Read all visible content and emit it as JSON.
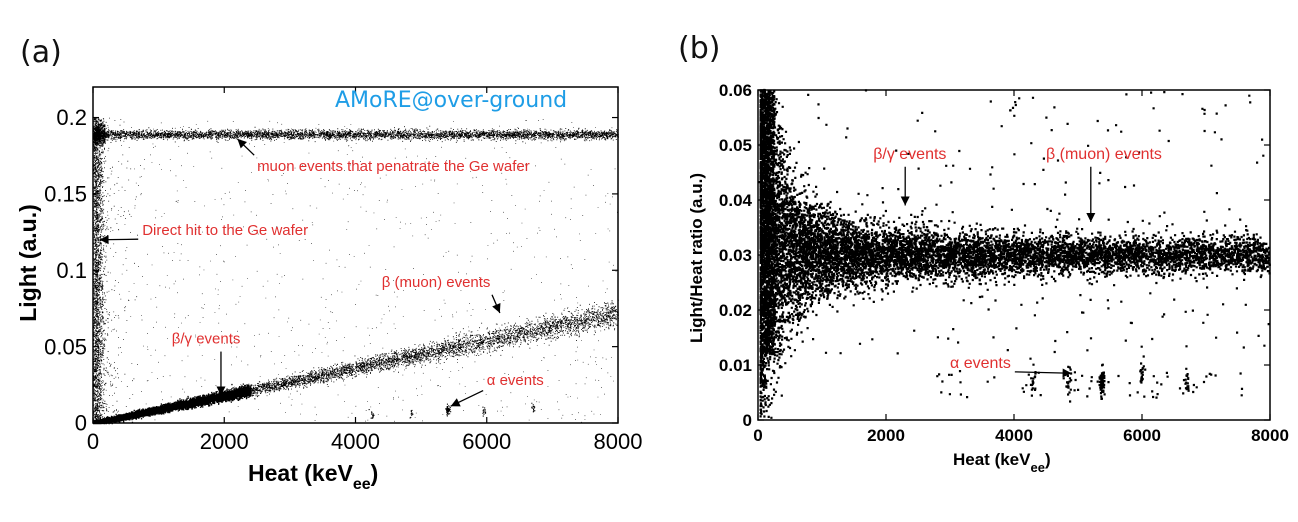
{
  "chart_data": [
    {
      "type": "scatter",
      "panel_label": "(a)",
      "title": "",
      "watermark": "AMoRE@over-ground",
      "xlabel": "Heat (keV",
      "xlabel_sub": "ee",
      "xlabel_close": ")",
      "ylabel": "Light (a.u.)",
      "xlim": [
        0,
        8000
      ],
      "ylim": [
        0,
        0.22
      ],
      "xticks": [
        0,
        2000,
        4000,
        6000,
        8000
      ],
      "xtick_labels": [
        "0",
        "2000",
        "4000",
        "6000",
        "8000"
      ],
      "yticks": [
        0,
        0.05,
        0.1,
        0.15,
        0.2
      ],
      "ytick_labels": [
        "0",
        "0.05",
        "0.1",
        "0.15",
        "0.2"
      ],
      "populations": [
        {
          "name": "muon events that penatrate the Ge wafer",
          "x_range": [
            0,
            8000
          ],
          "y_center": 0.189,
          "y_spread": 0.0015
        },
        {
          "name": "Direct hit to the Ge wafer",
          "x_range": [
            0,
            150
          ],
          "y_range": [
            0,
            0.19
          ]
        },
        {
          "name": "β/γ events",
          "x_range": [
            0,
            2300
          ],
          "slope_per_keV": 9e-06,
          "y_spread": 0.0012
        },
        {
          "name": "β (muon) events",
          "x_range": [
            2300,
            8000
          ],
          "slope_per_keV": 9e-06,
          "y_spread": 0.003
        },
        {
          "name": "α events",
          "clusters": [
            [
              4250,
              0.006
            ],
            [
              4850,
              0.006
            ],
            [
              5400,
              0.009
            ],
            [
              5950,
              0.008
            ],
            [
              6700,
              0.01
            ]
          ]
        }
      ],
      "annotations": [
        {
          "text": "muon events that penatrate the Ge wafer",
          "point_to": [
            2200,
            0.186
          ],
          "label_at": [
            2500,
            0.165
          ]
        },
        {
          "text": "Direct hit to the Ge wafer",
          "point_to": [
            100,
            0.12
          ],
          "label_at": [
            750,
            0.123
          ]
        },
        {
          "text": "β (muon) events",
          "point_to": [
            6200,
            0.072
          ],
          "label_at": [
            4400,
            0.089
          ]
        },
        {
          "text": "β/γ events",
          "point_to": [
            1950,
            0.018
          ],
          "label_at": [
            1200,
            0.052
          ]
        },
        {
          "text": "α events",
          "point_to": [
            5450,
            0.011
          ],
          "label_at": [
            6000,
            0.025
          ]
        }
      ]
    },
    {
      "type": "scatter",
      "panel_label": "(b)",
      "title": "",
      "xlabel": "Heat (keV",
      "xlabel_sub": "ee",
      "xlabel_close": ")",
      "ylabel": "Light/Heat ratio (a.u.)",
      "xlim": [
        0,
        8000
      ],
      "ylim": [
        0,
        0.06
      ],
      "xticks": [
        0,
        2000,
        4000,
        6000,
        8000
      ],
      "xtick_labels": [
        "0",
        "2000",
        "4000",
        "6000",
        "8000"
      ],
      "yticks": [
        0,
        0.01,
        0.02,
        0.03,
        0.04,
        0.05,
        0.06
      ],
      "ytick_labels": [
        "0",
        "0.01",
        "0.02",
        "0.03",
        "0.04",
        "0.05",
        "0.06"
      ],
      "populations": [
        {
          "name": "β/γ events",
          "x_range": [
            0,
            8000
          ],
          "ratio_center": 0.03
        },
        {
          "name": "α events",
          "clusters": [
            [
              4300,
              0.007
            ],
            [
              4850,
              0.007
            ],
            [
              5380,
              0.007
            ],
            [
              6000,
              0.008
            ],
            [
              6700,
              0.007
            ]
          ]
        }
      ],
      "annotations": [
        {
          "text": "β/γ events",
          "point_to": [
            2300,
            0.039
          ],
          "label_at": [
            1800,
            0.0475
          ]
        },
        {
          "text": "β (muon) events",
          "point_to": [
            5200,
            0.036
          ],
          "label_at": [
            4500,
            0.0475
          ]
        },
        {
          "text": "α events",
          "point_to": [
            4900,
            0.0085
          ],
          "label_at": [
            3000,
            0.0095
          ]
        }
      ]
    }
  ]
}
